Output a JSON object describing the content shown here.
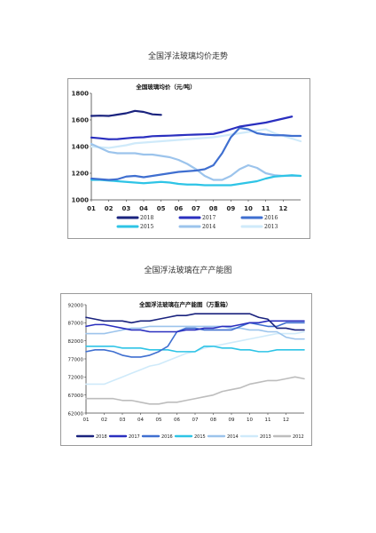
{
  "page": {
    "title_top": "全国浮法玻璃均价走势",
    "title_bottom": "全国浮法玻璃在产产能图"
  },
  "colors": {
    "2018": "#1a237e",
    "2017": "#2a2fbf",
    "2016": "#3f6fd0",
    "2015": "#2ec4e6",
    "2014": "#9cc4ec",
    "2013": "#cfeafa",
    "2012": "#bdbdbd"
  },
  "chart_data": [
    {
      "type": "line",
      "title": "全国玻璃均价（元/吨）",
      "x": [
        "01",
        "02",
        "03",
        "04",
        "05",
        "06",
        "07",
        "08",
        "09",
        "10",
        "11",
        "12"
      ],
      "ylim": [
        1000,
        1800
      ],
      "yticks": [
        1000,
        1200,
        1400,
        1600,
        1800
      ],
      "grid": false,
      "legend": "bottom",
      "legend_entries": [
        "2018",
        "2017",
        "2016",
        "2015",
        "2014",
        "2013"
      ],
      "series": [
        {
          "name": "2018",
          "x": [
            1,
            1.5,
            2,
            2.5,
            3,
            3.5,
            4,
            4.5,
            5
          ],
          "values": [
            1630,
            1632,
            1630,
            1640,
            1650,
            1668,
            1660,
            1642,
            1638
          ]
        },
        {
          "name": "2017",
          "x": [
            1,
            1.5,
            2,
            2.5,
            3,
            3.5,
            4,
            4.5,
            5,
            5.5,
            6,
            6.5,
            7,
            7.5,
            8,
            8.5,
            9,
            9.5,
            10,
            10.5,
            11,
            11.5,
            12,
            12.5
          ],
          "values": [
            1468,
            1462,
            1455,
            1456,
            1462,
            1468,
            1470,
            1478,
            1480,
            1482,
            1485,
            1488,
            1490,
            1492,
            1495,
            1510,
            1530,
            1550,
            1560,
            1570,
            1580,
            1595,
            1610,
            1625
          ]
        },
        {
          "name": "2016",
          "x": [
            1,
            1.5,
            2,
            2.5,
            3,
            3.5,
            4,
            4.5,
            5,
            5.5,
            6,
            6.5,
            7,
            7.5,
            8,
            8.5,
            9,
            9.5,
            10,
            10.5,
            11,
            11.5,
            12,
            12.5,
            13
          ],
          "values": [
            1160,
            1155,
            1150,
            1155,
            1175,
            1180,
            1170,
            1180,
            1190,
            1200,
            1210,
            1215,
            1220,
            1230,
            1260,
            1350,
            1470,
            1540,
            1530,
            1500,
            1490,
            1485,
            1485,
            1480,
            1480
          ]
        },
        {
          "name": "2015",
          "x": [
            1,
            1.5,
            2,
            2.5,
            3,
            3.5,
            4,
            4.5,
            5,
            5.5,
            6,
            6.5,
            7,
            7.5,
            8,
            8.5,
            9,
            9.5,
            10,
            10.5,
            11,
            11.5,
            12,
            12.5,
            13
          ],
          "values": [
            1150,
            1150,
            1145,
            1140,
            1135,
            1130,
            1125,
            1130,
            1135,
            1130,
            1120,
            1115,
            1115,
            1110,
            1110,
            1110,
            1110,
            1120,
            1130,
            1140,
            1160,
            1175,
            1180,
            1185,
            1180
          ]
        },
        {
          "name": "2014",
          "x": [
            1,
            1.5,
            2,
            2.5,
            3,
            3.5,
            4,
            4.5,
            5,
            5.5,
            6,
            6.5,
            7,
            7.5,
            8,
            8.5,
            9,
            9.5,
            10,
            10.5,
            11,
            11.5,
            12,
            12.5,
            13
          ],
          "values": [
            1420,
            1390,
            1360,
            1350,
            1350,
            1350,
            1340,
            1340,
            1330,
            1320,
            1300,
            1270,
            1230,
            1180,
            1150,
            1150,
            1180,
            1230,
            1260,
            1240,
            1200,
            1185,
            1180,
            1180,
            1180
          ]
        },
        {
          "name": "2013",
          "x": [
            1,
            1.5,
            2,
            2.5,
            3,
            3.5,
            4,
            4.5,
            5,
            5.5,
            6,
            6.5,
            7,
            7.5,
            8,
            8.5,
            9,
            9.5,
            10,
            10.5,
            11,
            11.5,
            12,
            12.5,
            13
          ],
          "values": [
            1400,
            1395,
            1390,
            1400,
            1410,
            1425,
            1430,
            1435,
            1440,
            1445,
            1450,
            1455,
            1460,
            1465,
            1470,
            1480,
            1490,
            1500,
            1510,
            1520,
            1530,
            1500,
            1480,
            1460,
            1440
          ]
        }
      ]
    },
    {
      "type": "line",
      "title": "全国浮法玻璃在产产能图（万重箱）",
      "x": [
        "01",
        "02",
        "03",
        "04",
        "05",
        "06",
        "07",
        "08",
        "09",
        "10",
        "11",
        "12"
      ],
      "ylim": [
        62000,
        92000
      ],
      "yticks": [
        62000,
        67000,
        72000,
        77000,
        82000,
        87000,
        92000
      ],
      "grid": false,
      "legend": "bottom",
      "legend_entries": [
        "2018",
        "2017",
        "2016",
        "2015",
        "2014",
        "2013",
        "2012"
      ],
      "series": [
        {
          "name": "2018",
          "x": [
            1,
            1.5,
            2,
            2.5,
            3,
            3.5,
            4,
            4.5,
            5,
            5.5,
            6,
            6.5,
            7,
            7.5,
            8,
            8.5,
            9,
            9.5,
            10,
            10.5,
            11,
            11.5,
            12,
            12.5,
            13
          ],
          "values": [
            88500,
            88000,
            87500,
            87500,
            87500,
            87000,
            87500,
            87500,
            88000,
            88500,
            89000,
            89000,
            89500,
            89500,
            89500,
            89500,
            89500,
            89500,
            89500,
            88500,
            88000,
            85500,
            85500,
            85000,
            85000
          ]
        },
        {
          "name": "2017",
          "x": [
            1,
            1.5,
            2,
            2.5,
            3,
            3.5,
            4,
            4.5,
            5,
            5.5,
            6,
            6.5,
            7,
            7.5,
            8,
            8.5,
            9,
            9.5,
            10,
            10.5,
            11,
            11.5,
            12,
            12.5,
            13
          ],
          "values": [
            86000,
            86500,
            86500,
            86000,
            85500,
            85000,
            85000,
            84500,
            84500,
            84500,
            84500,
            85000,
            85000,
            85500,
            85500,
            86000,
            86000,
            86500,
            87000,
            87000,
            87500,
            87500,
            87500,
            87500,
            87500
          ]
        },
        {
          "name": "2016",
          "x": [
            1,
            1.5,
            2,
            2.5,
            3,
            3.5,
            4,
            4.5,
            5,
            5.5,
            6,
            6.5,
            7,
            7.5,
            8,
            8.5,
            9,
            9.5,
            10,
            10.5,
            11,
            11.5,
            12,
            12.5,
            13
          ],
          "values": [
            79000,
            79500,
            79500,
            79000,
            78000,
            77500,
            77500,
            78000,
            79000,
            80500,
            84500,
            85500,
            85500,
            85000,
            85000,
            85000,
            85000,
            86000,
            87000,
            86500,
            86000,
            86000,
            87000,
            87000,
            87000
          ]
        },
        {
          "name": "2015",
          "x": [
            1,
            1.5,
            2,
            2.5,
            3,
            3.5,
            4,
            4.5,
            5,
            5.5,
            6,
            6.5,
            7,
            7.5,
            8,
            8.5,
            9,
            9.5,
            10,
            10.5,
            11,
            11.5,
            12,
            12.5,
            13
          ],
          "values": [
            80500,
            80500,
            80500,
            80500,
            80000,
            80000,
            80000,
            79500,
            79500,
            79500,
            79000,
            79000,
            79000,
            80500,
            80500,
            80000,
            80000,
            79500,
            79500,
            79000,
            79000,
            79500,
            79500,
            79500,
            79500
          ]
        },
        {
          "name": "2014",
          "x": [
            1,
            1.5,
            2,
            2.5,
            3,
            3.5,
            4,
            4.5,
            5,
            5.5,
            6,
            6.5,
            7,
            7.5,
            8,
            8.5,
            9,
            9.5,
            10,
            10.5,
            11,
            11.5,
            12,
            12.5,
            13
          ],
          "values": [
            84000,
            84000,
            84000,
            84500,
            85000,
            85500,
            85500,
            86000,
            86000,
            86000,
            86000,
            86000,
            86000,
            86000,
            86000,
            86000,
            85500,
            85500,
            85000,
            85000,
            84500,
            84500,
            83000,
            82500,
            82500
          ]
        },
        {
          "name": "2013",
          "x": [
            1,
            1.5,
            2,
            2.5,
            3,
            3.5,
            4,
            4.5,
            5,
            5.5,
            6,
            6.5,
            7,
            7.5,
            8,
            8.5,
            9,
            9.5,
            10,
            10.5,
            11,
            11.5,
            12,
            12.5,
            13
          ],
          "values": [
            70000,
            70000,
            70000,
            71000,
            72000,
            73000,
            74000,
            75000,
            75500,
            76500,
            77500,
            78500,
            79000,
            80000,
            80500,
            81000,
            81500,
            82000,
            82500,
            83000,
            83500,
            84000,
            84000,
            84000,
            84500
          ]
        },
        {
          "name": "2012",
          "x": [
            1,
            1.5,
            2,
            2.5,
            3,
            3.5,
            4,
            4.5,
            5,
            5.5,
            6,
            6.5,
            7,
            7.5,
            8,
            8.5,
            9,
            9.5,
            10,
            10.5,
            11,
            11.5,
            12,
            12.5,
            13
          ],
          "values": [
            66000,
            66000,
            66000,
            66000,
            65500,
            65500,
            65000,
            64500,
            64500,
            65000,
            65000,
            65500,
            66000,
            66500,
            67000,
            68000,
            68500,
            69000,
            70000,
            70500,
            71000,
            71000,
            71500,
            72000,
            71500
          ]
        }
      ]
    }
  ]
}
